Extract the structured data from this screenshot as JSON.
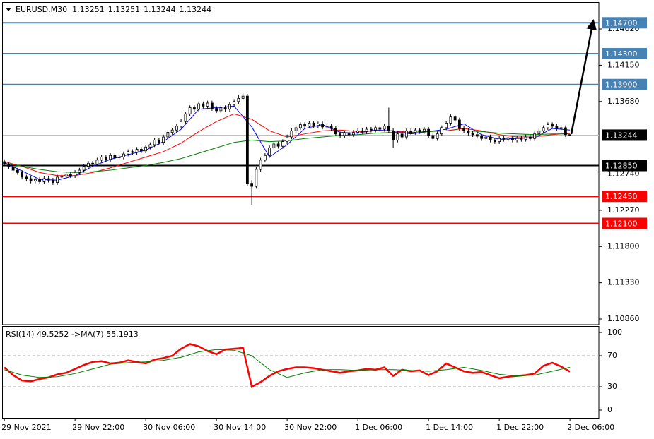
{
  "chart_data": [
    {
      "type": "candlestick",
      "title": "EURUSD,M30",
      "quote": [
        1.13251,
        1.13251,
        1.13244,
        1.13244
      ],
      "open": [
        1.129,
        1.1287,
        1.1283,
        1.1279,
        1.1276,
        1.127,
        1.1268,
        1.1265,
        1.1267,
        1.1264,
        1.1268,
        1.1266,
        1.1263,
        1.127,
        1.1271,
        1.1274,
        1.1272,
        1.1276,
        1.1279,
        1.1284,
        1.1288,
        1.1287,
        1.1292,
        1.1296,
        1.1293,
        1.1298,
        1.1295,
        1.1296,
        1.13,
        1.1303,
        1.1302,
        1.1306,
        1.1304,
        1.1309,
        1.1312,
        1.1318,
        1.1315,
        1.1322,
        1.1328,
        1.1331,
        1.1336,
        1.1342,
        1.1352,
        1.136,
        1.1358,
        1.1365,
        1.1362,
        1.1366,
        1.1359,
        1.1356,
        1.136,
        1.1358,
        1.1364,
        1.1368,
        1.1372,
        1.1375,
        1.1262,
        1.1258,
        1.128,
        1.1292,
        1.1298,
        1.1308,
        1.1313,
        1.131,
        1.1316,
        1.1322,
        1.133,
        1.1334,
        1.1338,
        1.1336,
        1.134,
        1.1337,
        1.1339,
        1.1335,
        1.1336,
        1.1333,
        1.1326,
        1.1324,
        1.1327,
        1.1325,
        1.1328,
        1.133,
        1.1329,
        1.1332,
        1.1331,
        1.1334,
        1.1332,
        1.1336,
        1.133,
        1.1318,
        1.1326,
        1.1322,
        1.133,
        1.1328,
        1.1331,
        1.1329,
        1.1332,
        1.1324,
        1.132,
        1.1326,
        1.1334,
        1.134,
        1.1348,
        1.1344,
        1.1333,
        1.133,
        1.1327,
        1.1325,
        1.1323,
        1.132,
        1.1322,
        1.1318,
        1.1316,
        1.132,
        1.1319,
        1.1321,
        1.1318,
        1.132,
        1.1319,
        1.1322,
        1.132,
        1.1326,
        1.133,
        1.1334,
        1.1338,
        1.1336,
        1.1333,
        1.1334,
        1.13251
      ],
      "high": [
        1.1293,
        1.129,
        1.1286,
        1.1282,
        1.1279,
        1.1273,
        1.1271,
        1.127,
        1.127,
        1.1271,
        1.1271,
        1.1269,
        1.1273,
        1.1274,
        1.1277,
        1.1277,
        1.1279,
        1.1282,
        1.1287,
        1.1291,
        1.1291,
        1.1295,
        1.1299,
        1.1299,
        1.1301,
        1.1301,
        1.1299,
        1.1303,
        1.1306,
        1.1306,
        1.1309,
        1.1309,
        1.1312,
        1.1315,
        1.1321,
        1.1321,
        1.1325,
        1.1331,
        1.1334,
        1.1339,
        1.1345,
        1.1355,
        1.1363,
        1.1363,
        1.1368,
        1.1368,
        1.1369,
        1.1369,
        1.1362,
        1.1363,
        1.1363,
        1.1367,
        1.1371,
        1.1376,
        1.1379,
        1.1378,
        1.1266,
        1.1283,
        1.1295,
        1.1301,
        1.1311,
        1.1316,
        1.1316,
        1.1319,
        1.1325,
        1.1333,
        1.1337,
        1.1341,
        1.1341,
        1.1343,
        1.1343,
        1.1342,
        1.1342,
        1.1339,
        1.1339,
        1.1336,
        1.1329,
        1.133,
        1.133,
        1.1331,
        1.1333,
        1.1333,
        1.1335,
        1.1335,
        1.1337,
        1.1337,
        1.1339,
        1.136,
        1.1333,
        1.1329,
        1.1329,
        1.1333,
        1.1333,
        1.1334,
        1.1334,
        1.1335,
        1.1335,
        1.1327,
        1.1329,
        1.1337,
        1.1343,
        1.1352,
        1.1351,
        1.1347,
        1.1336,
        1.1333,
        1.133,
        1.1328,
        1.1326,
        1.1325,
        1.1325,
        1.1321,
        1.1323,
        1.1323,
        1.1324,
        1.1324,
        1.1323,
        1.1323,
        1.1325,
        1.1325,
        1.1329,
        1.1333,
        1.1337,
        1.1341,
        1.1341,
        1.1339,
        1.1337,
        1.1337,
        1.13251
      ],
      "low": [
        1.1284,
        1.128,
        1.1276,
        1.1273,
        1.1267,
        1.1265,
        1.1262,
        1.1262,
        1.1261,
        1.1261,
        1.1263,
        1.126,
        1.126,
        1.1267,
        1.1268,
        1.1269,
        1.1269,
        1.1273,
        1.1276,
        1.1281,
        1.1284,
        1.1284,
        1.1289,
        1.129,
        1.129,
        1.1292,
        1.1292,
        1.1293,
        1.1297,
        1.1299,
        1.1299,
        1.1301,
        1.1301,
        1.1306,
        1.1309,
        1.1312,
        1.1312,
        1.1319,
        1.1325,
        1.1328,
        1.1333,
        1.1339,
        1.1349,
        1.1355,
        1.1355,
        1.1359,
        1.1359,
        1.1356,
        1.1353,
        1.1353,
        1.1355,
        1.1355,
        1.1361,
        1.1365,
        1.1369,
        1.1258,
        1.1234,
        1.1255,
        1.1277,
        1.1289,
        1.1295,
        1.1305,
        1.1307,
        1.1307,
        1.1313,
        1.1319,
        1.1327,
        1.1331,
        1.1333,
        1.1333,
        1.1334,
        1.1334,
        1.1332,
        1.1332,
        1.133,
        1.1323,
        1.1321,
        1.1321,
        1.1322,
        1.1322,
        1.1325,
        1.1326,
        1.1326,
        1.1328,
        1.1328,
        1.1329,
        1.1329,
        1.1327,
        1.1308,
        1.1315,
        1.1319,
        1.1319,
        1.1325,
        1.1325,
        1.1326,
        1.1326,
        1.1321,
        1.1317,
        1.1317,
        1.1323,
        1.1331,
        1.1337,
        1.1341,
        1.133,
        1.1327,
        1.1324,
        1.1322,
        1.132,
        1.1317,
        1.1317,
        1.1315,
        1.1313,
        1.1313,
        1.1316,
        1.1316,
        1.1315,
        1.1315,
        1.1316,
        1.1316,
        1.1317,
        1.1317,
        1.1323,
        1.1327,
        1.1331,
        1.1333,
        1.133,
        1.133,
        1.1322,
        1.13244
      ],
      "close": [
        1.1287,
        1.1283,
        1.1279,
        1.1276,
        1.127,
        1.1268,
        1.1265,
        1.1267,
        1.1264,
        1.1268,
        1.1266,
        1.1263,
        1.127,
        1.1271,
        1.1274,
        1.1272,
        1.1276,
        1.1279,
        1.1284,
        1.1288,
        1.1287,
        1.1292,
        1.1296,
        1.1293,
        1.1298,
        1.1295,
        1.1296,
        1.13,
        1.1303,
        1.1302,
        1.1306,
        1.1304,
        1.1309,
        1.1312,
        1.1318,
        1.1315,
        1.1322,
        1.1328,
        1.1331,
        1.1336,
        1.1342,
        1.1352,
        1.136,
        1.1358,
        1.1365,
        1.1362,
        1.1366,
        1.1359,
        1.1356,
        1.136,
        1.1358,
        1.1364,
        1.1368,
        1.1372,
        1.1375,
        1.1262,
        1.1258,
        1.128,
        1.1292,
        1.1298,
        1.1308,
        1.1313,
        1.131,
        1.1316,
        1.1322,
        1.133,
        1.1334,
        1.1338,
        1.1336,
        1.134,
        1.1337,
        1.1339,
        1.1335,
        1.1336,
        1.1333,
        1.1326,
        1.1324,
        1.1327,
        1.1325,
        1.1328,
        1.133,
        1.1329,
        1.1332,
        1.1331,
        1.1334,
        1.1332,
        1.1336,
        1.133,
        1.1318,
        1.1326,
        1.1322,
        1.133,
        1.1328,
        1.1331,
        1.1329,
        1.1332,
        1.1324,
        1.132,
        1.1326,
        1.1334,
        1.134,
        1.1348,
        1.1344,
        1.1333,
        1.133,
        1.1327,
        1.1325,
        1.1323,
        1.132,
        1.1322,
        1.1318,
        1.1316,
        1.132,
        1.1319,
        1.1321,
        1.1318,
        1.132,
        1.1319,
        1.1322,
        1.132,
        1.1326,
        1.133,
        1.1334,
        1.1338,
        1.1336,
        1.1333,
        1.1334,
        1.1325,
        1.13244
      ],
      "series": [
        {
          "color": "#0000ff",
          "x": [
            0,
            4,
            8,
            12,
            16,
            20,
            24,
            28,
            32,
            36,
            40,
            44,
            48,
            52,
            56,
            60,
            64,
            68,
            72,
            76,
            80,
            84,
            88,
            92,
            96,
            100,
            104,
            108,
            112,
            116,
            120,
            124,
            128
          ],
          "values": [
            1.1289,
            1.1278,
            1.1267,
            1.1266,
            1.1272,
            1.1284,
            1.1293,
            1.1299,
            1.1305,
            1.1316,
            1.1332,
            1.1358,
            1.136,
            1.1362,
            1.1335,
            1.1296,
            1.1312,
            1.1333,
            1.1338,
            1.1328,
            1.1327,
            1.1331,
            1.133,
            1.1326,
            1.1329,
            1.1332,
            1.1339,
            1.1325,
            1.1319,
            1.132,
            1.1321,
            1.1333,
            1.1331
          ]
        },
        {
          "color": "#ff0000",
          "x": [
            0,
            4,
            8,
            12,
            16,
            20,
            24,
            28,
            32,
            36,
            40,
            44,
            48,
            52,
            56,
            60,
            64,
            68,
            72,
            76,
            80,
            84,
            88,
            92,
            96,
            100,
            104,
            108,
            112,
            116,
            120,
            124,
            128
          ],
          "values": [
            1.129,
            1.1284,
            1.1276,
            1.1272,
            1.1272,
            1.1276,
            1.1282,
            1.1289,
            1.1296,
            1.1303,
            1.1314,
            1.1329,
            1.1342,
            1.1352,
            1.1345,
            1.133,
            1.1322,
            1.1326,
            1.133,
            1.1331,
            1.1329,
            1.133,
            1.133,
            1.1328,
            1.1329,
            1.133,
            1.1333,
            1.133,
            1.1325,
            1.1322,
            1.1322,
            1.1325,
            1.1327
          ]
        },
        {
          "color": "#008000",
          "x": [
            0,
            4,
            8,
            12,
            16,
            20,
            24,
            28,
            32,
            36,
            40,
            44,
            48,
            52,
            56,
            60,
            64,
            68,
            72,
            76,
            80,
            84,
            88,
            92,
            96,
            100,
            104,
            108,
            112,
            116,
            120,
            124,
            128
          ],
          "values": [
            1.1288,
            1.1284,
            1.128,
            1.1277,
            1.1276,
            1.1277,
            1.1279,
            1.1282,
            1.1285,
            1.1289,
            1.1294,
            1.1301,
            1.1308,
            1.1315,
            1.1318,
            1.1316,
            1.1317,
            1.132,
            1.1322,
            1.1324,
            1.1325,
            1.1327,
            1.1328,
            1.1328,
            1.1329,
            1.133,
            1.133,
            1.1329,
            1.1327,
            1.1326,
            1.1325,
            1.1326,
            1.1326
          ]
        }
      ],
      "xlim": [
        -0.5,
        134.54
      ],
      "ylim": [
        1.10787,
        1.14968
      ],
      "yticks": [
        {
          "value": 1.1462,
          "label": "1.14620"
        },
        {
          "value": 1.1415,
          "label": "1.14150"
        },
        {
          "value": 1.1368,
          "label": "1.13680"
        },
        {
          "value": 1.1274,
          "label": "1.12740"
        },
        {
          "value": 1.1227,
          "label": "1.12270"
        },
        {
          "value": 1.118,
          "label": "1.11800"
        },
        {
          "value": 1.1133,
          "label": "1.11330"
        },
        {
          "value": 1.1086,
          "label": "1.10860"
        }
      ],
      "levels": [
        {
          "value": 1.147,
          "label": "1.14700",
          "color": "#4682b4"
        },
        {
          "value": 1.143,
          "label": "1.14300",
          "color": "#4682b4"
        },
        {
          "value": 1.139,
          "label": "1.13900",
          "color": "#4682b4"
        },
        {
          "value": 1.1285,
          "label": "1.12850",
          "color": "#000000"
        },
        {
          "value": 1.1245,
          "label": "1.12450",
          "color": "#ff0000"
        },
        {
          "value": 1.121,
          "label": "1.12100",
          "color": "#ff0000"
        }
      ],
      "current": {
        "value": 1.13244,
        "label": "1.13244"
      }
    },
    {
      "type": "line",
      "title": "RSI(14) 49.5252 ->MA(7) 55.1913",
      "series": [
        {
          "color": "#ff0000",
          "x": [
            0,
            2,
            4,
            6,
            8,
            10,
            12,
            14,
            16,
            18,
            20,
            22,
            24,
            26,
            28,
            30,
            32,
            34,
            36,
            38,
            40,
            42,
            44,
            46,
            48,
            50,
            52,
            54,
            56,
            58,
            60,
            62,
            64,
            66,
            68,
            70,
            72,
            74,
            76,
            78,
            80,
            82,
            84,
            86,
            88,
            90,
            92,
            94,
            96,
            98,
            100,
            102,
            104,
            106,
            108,
            110,
            112,
            114,
            116,
            118,
            120,
            122,
            124,
            126,
            128
          ],
          "values": [
            55,
            45,
            38,
            37,
            40,
            42,
            46,
            48,
            53,
            58,
            62,
            63,
            60,
            61,
            64,
            62,
            60,
            65,
            67,
            70,
            79,
            85,
            82,
            76,
            72,
            78,
            79,
            80,
            30,
            36,
            44,
            50,
            53,
            55,
            55,
            54,
            52,
            50,
            48,
            50,
            51,
            53,
            52,
            55,
            44,
            52,
            50,
            51,
            45,
            50,
            60,
            55,
            50,
            48,
            49,
            45,
            41,
            43,
            44,
            45,
            47,
            57,
            61,
            56,
            49.5252
          ]
        },
        {
          "color": "#008000",
          "x": [
            0,
            4,
            8,
            12,
            16,
            20,
            24,
            28,
            32,
            36,
            40,
            44,
            48,
            52,
            56,
            60,
            64,
            68,
            72,
            76,
            80,
            84,
            88,
            92,
            96,
            100,
            104,
            108,
            112,
            116,
            120,
            124,
            128
          ],
          "values": [
            52,
            45,
            42,
            43,
            47,
            53,
            59,
            61,
            62,
            64,
            68,
            75,
            78,
            77,
            70,
            52,
            42,
            48,
            52,
            52,
            51,
            52,
            52,
            51,
            50,
            52,
            55,
            51,
            46,
            44,
            45,
            50,
            55.1913
          ]
        }
      ],
      "xlim": [
        -0.5,
        134.54
      ],
      "ylim": [
        -10,
        108.2
      ],
      "yticks": [
        100,
        70,
        30,
        0
      ],
      "levels": [
        70,
        30
      ],
      "xticks": [
        {
          "value": 0,
          "label": "29 Nov 2021"
        },
        {
          "value": 16,
          "label": "29 Nov 22:00"
        },
        {
          "value": 32,
          "label": "30 Nov 06:00"
        },
        {
          "value": 48,
          "label": "30 Nov 14:00"
        },
        {
          "value": 64,
          "label": "30 Nov 22:00"
        },
        {
          "value": 80,
          "label": "1 Dec 06:00"
        },
        {
          "value": 96,
          "label": "1 Dec 14:00"
        },
        {
          "value": 112,
          "label": "1 Dec 22:00"
        },
        {
          "value": 128,
          "label": "2 Dec 06:00"
        }
      ]
    }
  ]
}
